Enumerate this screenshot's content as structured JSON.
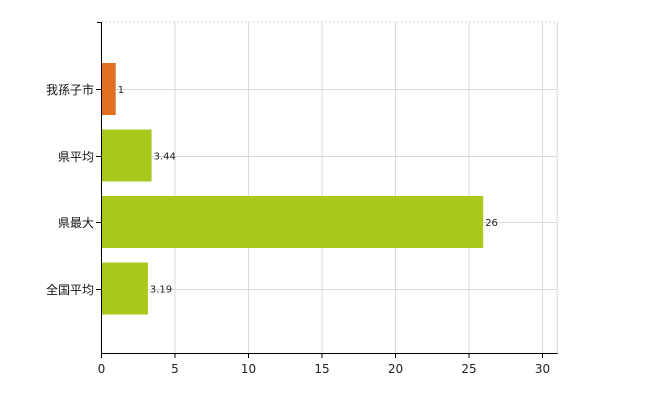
{
  "chart_data": {
    "type": "bar",
    "orientation": "horizontal",
    "title": "",
    "xlabel": "",
    "ylabel": "",
    "categories": [
      "我孫子市",
      "県平均",
      "県最大",
      "全国平均"
    ],
    "values": [
      1,
      3.44,
      26,
      3.19
    ],
    "value_labels": [
      "1",
      "3.44",
      "26",
      "3.19"
    ],
    "bar_colors": [
      "#e06f20",
      "#a8c81c",
      "#a8c81c",
      "#a8c81c"
    ],
    "xlim": [
      0,
      31
    ],
    "xticks": [
      0,
      5,
      10,
      15,
      20,
      25,
      30
    ],
    "grid": true,
    "legend": "none"
  }
}
